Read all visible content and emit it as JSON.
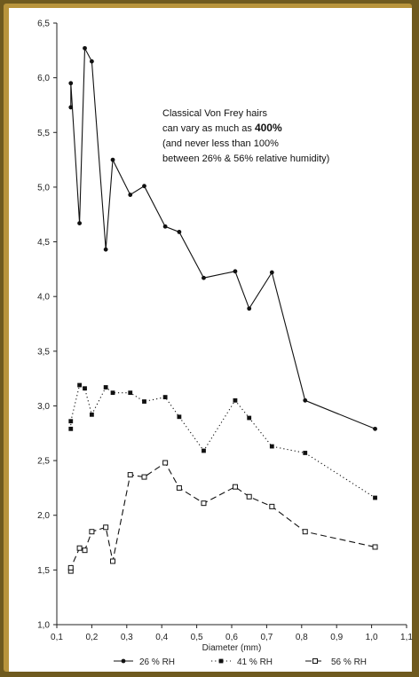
{
  "chart_data": {
    "type": "line",
    "xlabel": "Diameter (mm)",
    "ylabel": "",
    "xlim": [
      0.1,
      1.1
    ],
    "ylim": [
      1.0,
      6.5
    ],
    "x_ticks": [
      "0,1",
      "0,2",
      "0,3",
      "0,4",
      "0,5",
      "0,6",
      "0,7",
      "0,8",
      "0,9",
      "1,0",
      "1,1"
    ],
    "y_ticks": [
      "1,0",
      "1,5",
      "2,0",
      "2,5",
      "3,0",
      "3,5",
      "4,0",
      "4,5",
      "5,0",
      "5,5",
      "6,0",
      "6,5"
    ],
    "legend_position": "bottom",
    "annotation": [
      "Classical Von Frey hairs",
      "can vary as much as 400%",
      "(and never less than 100%",
      "between 26% & 56% relative humidity)"
    ],
    "series": [
      {
        "name": "26 % RH",
        "marker": "filled-circle",
        "line": "solid",
        "x": [
          0.14,
          0.14,
          0.165,
          0.18,
          0.2,
          0.24,
          0.26,
          0.31,
          0.35,
          0.41,
          0.45,
          0.52,
          0.61,
          0.65,
          0.715,
          0.81,
          1.01
        ],
        "y": [
          5.73,
          5.95,
          4.67,
          6.27,
          6.15,
          4.43,
          5.25,
          4.93,
          5.01,
          4.64,
          4.59,
          4.17,
          4.23,
          3.89,
          4.22,
          3.05,
          2.79
        ]
      },
      {
        "name": "41 % RH",
        "marker": "filled-square",
        "line": "dotted",
        "x": [
          0.14,
          0.14,
          0.165,
          0.18,
          0.2,
          0.24,
          0.26,
          0.31,
          0.35,
          0.41,
          0.45,
          0.52,
          0.61,
          0.65,
          0.715,
          0.81,
          1.01
        ],
        "y": [
          2.79,
          2.86,
          3.19,
          3.16,
          2.92,
          3.17,
          3.12,
          3.12,
          3.04,
          3.08,
          2.9,
          2.59,
          3.05,
          2.89,
          2.63,
          2.57,
          2.16
        ]
      },
      {
        "name": "56 % RH",
        "marker": "open-square",
        "line": "dashed",
        "x": [
          0.14,
          0.14,
          0.165,
          0.18,
          0.2,
          0.24,
          0.26,
          0.31,
          0.35,
          0.41,
          0.45,
          0.52,
          0.61,
          0.65,
          0.715,
          0.81,
          1.01
        ],
        "y": [
          1.49,
          1.52,
          1.7,
          1.68,
          1.85,
          1.89,
          1.58,
          2.37,
          2.35,
          2.48,
          2.25,
          2.11,
          2.26,
          2.17,
          2.08,
          1.85,
          1.71
        ]
      }
    ]
  }
}
